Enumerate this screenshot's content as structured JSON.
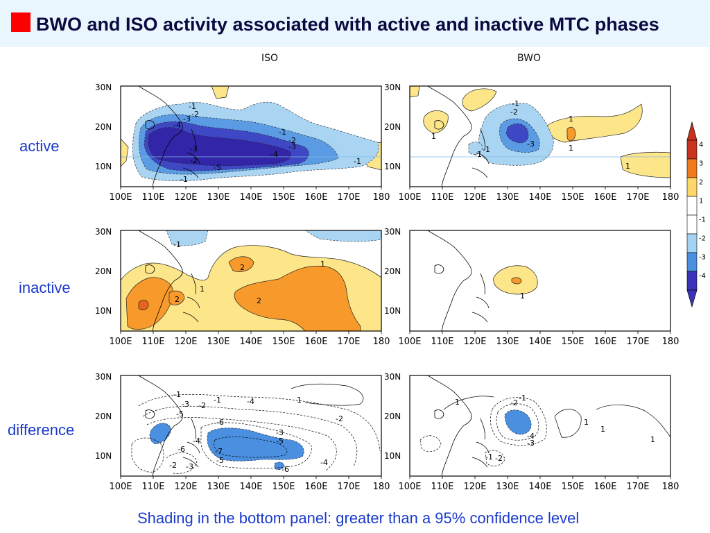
{
  "header": {
    "title": "BWO and ISO activity associated with active and inactive MTC phases"
  },
  "columns": {
    "iso": "ISO",
    "bwo": "BWO"
  },
  "rows": {
    "active": "active",
    "inactive": "inactive",
    "difference": "difference"
  },
  "axes": {
    "lon_ticks": [
      "100E",
      "110E",
      "120E",
      "130E",
      "140E",
      "150E",
      "160E",
      "170E",
      "180"
    ],
    "lat_ticks": [
      "30N",
      "20N",
      "10N"
    ]
  },
  "colorbar": {
    "labels": [
      "4",
      "3",
      "2",
      "1",
      "-1",
      "-2",
      "-3",
      "-4"
    ],
    "colors": [
      "#c8321e",
      "#f07b1e",
      "#fdd76a",
      "#ffffff",
      "#ffffff",
      "#a4d2f2",
      "#4a8fe0",
      "#3a32b8"
    ]
  },
  "palette": {
    "pos1": "#fde68a",
    "pos2": "#f79a2b",
    "pos3": "#e8641c",
    "neg1": "#a9d5f3",
    "neg2": "#5b9be4",
    "neg3": "#3f48c4",
    "neg4": "#3225a8"
  },
  "panels": {
    "iso_active": {
      "labels": [
        "-1",
        "-2",
        "-3",
        "-4",
        "-1",
        "-2",
        "-3",
        "-4",
        "-3",
        "-2",
        "-5",
        "-1",
        "-1"
      ]
    },
    "bwo_active": {
      "labels": [
        "-1",
        "-2",
        "1",
        "-3",
        "1",
        "-1",
        "1",
        "1",
        "-1"
      ]
    },
    "iso_inactive": {
      "labels": [
        "-1",
        "2",
        "1",
        "1",
        "2",
        "2"
      ]
    },
    "bwo_inactive": {
      "labels": [
        "1"
      ]
    },
    "iso_diff": {
      "labels": [
        "-1",
        "-3",
        "-5",
        "-2",
        "-1",
        "-4",
        "1",
        "-2",
        "-6",
        "-3",
        "-5",
        "-4",
        "-7",
        "-5",
        "-6",
        "-4",
        "-2",
        "-3",
        "-6"
      ]
    },
    "bwo_diff": {
      "labels": [
        "-1",
        "-2",
        "1",
        "1",
        "1",
        "-4",
        "-3",
        "-1",
        "-2",
        "1"
      ]
    }
  },
  "footer": {
    "note": "Shading in the bottom panel: greater than a 95% confidence level"
  }
}
